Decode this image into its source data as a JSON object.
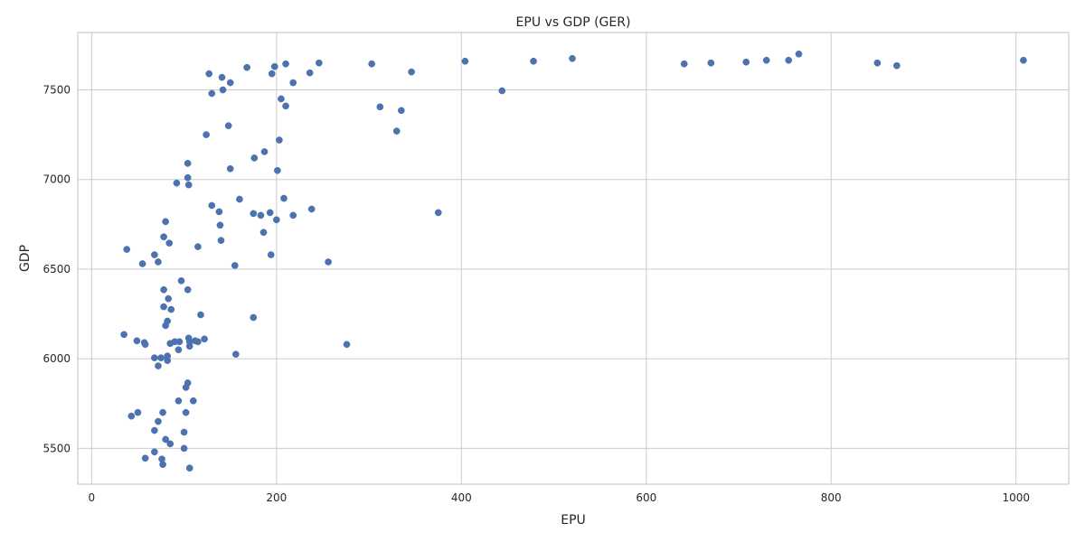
{
  "chart_data": {
    "type": "scatter",
    "title": "EPU vs GDP (GER)",
    "xlabel": "EPU",
    "ylabel": "GDP",
    "xlim": [
      -15,
      1057
    ],
    "ylim": [
      5300,
      7820
    ],
    "xticks": [
      0,
      200,
      400,
      600,
      800,
      1000
    ],
    "yticks": [
      5500,
      6000,
      6500,
      7000,
      7500
    ],
    "grid": true,
    "marker_color": "#4c72b0",
    "points": [
      [
        35,
        6135
      ],
      [
        38,
        6610
      ],
      [
        43,
        5680
      ],
      [
        49,
        6100
      ],
      [
        50,
        5700
      ],
      [
        55,
        6530
      ],
      [
        57,
        6090
      ],
      [
        58,
        6080
      ],
      [
        58,
        5445
      ],
      [
        68,
        5480
      ],
      [
        68,
        6005
      ],
      [
        68,
        5600
      ],
      [
        68,
        6580
      ],
      [
        72,
        5650
      ],
      [
        72,
        5960
      ],
      [
        72,
        6540
      ],
      [
        75,
        6005
      ],
      [
        76,
        5440
      ],
      [
        77,
        5410
      ],
      [
        77,
        5700
      ],
      [
        78,
        6680
      ],
      [
        78,
        6385
      ],
      [
        78,
        6290
      ],
      [
        80,
        6185
      ],
      [
        80,
        5550
      ],
      [
        80,
        6765
      ],
      [
        82,
        6210
      ],
      [
        82,
        6015
      ],
      [
        82,
        5990
      ],
      [
        83,
        6335
      ],
      [
        84,
        6645
      ],
      [
        85,
        6085
      ],
      [
        85,
        5525
      ],
      [
        86,
        6275
      ],
      [
        90,
        6095
      ],
      [
        92,
        6980
      ],
      [
        94,
        5765
      ],
      [
        94,
        6050
      ],
      [
        95,
        6095
      ],
      [
        97,
        6435
      ],
      [
        100,
        5500
      ],
      [
        100,
        5590
      ],
      [
        102,
        5840
      ],
      [
        102,
        5700
      ],
      [
        104,
        5865
      ],
      [
        104,
        7090
      ],
      [
        104,
        7010
      ],
      [
        104,
        6385
      ],
      [
        105,
        6970
      ],
      [
        105,
        6115
      ],
      [
        106,
        6095
      ],
      [
        106,
        5390
      ],
      [
        106,
        6070
      ],
      [
        110,
        5765
      ],
      [
        112,
        6100
      ],
      [
        115,
        6625
      ],
      [
        115,
        6095
      ],
      [
        118,
        6245
      ],
      [
        122,
        6110
      ],
      [
        124,
        7250
      ],
      [
        127,
        7590
      ],
      [
        130,
        6855
      ],
      [
        130,
        7480
      ],
      [
        138,
        6820
      ],
      [
        139,
        6745
      ],
      [
        140,
        6660
      ],
      [
        141,
        7570
      ],
      [
        142,
        7500
      ],
      [
        148,
        7300
      ],
      [
        150,
        7540
      ],
      [
        150,
        7060
      ],
      [
        155,
        6520
      ],
      [
        156,
        6025
      ],
      [
        160,
        6890
      ],
      [
        168,
        7625
      ],
      [
        175,
        6230
      ],
      [
        175,
        6810
      ],
      [
        176,
        7120
      ],
      [
        183,
        6800
      ],
      [
        186,
        6705
      ],
      [
        187,
        7155
      ],
      [
        193,
        6815
      ],
      [
        194,
        6580
      ],
      [
        195,
        7590
      ],
      [
        198,
        7630
      ],
      [
        200,
        6775
      ],
      [
        201,
        7050
      ],
      [
        203,
        7220
      ],
      [
        205,
        7450
      ],
      [
        208,
        6895
      ],
      [
        210,
        7410
      ],
      [
        210,
        7645
      ],
      [
        218,
        7540
      ],
      [
        218,
        6800
      ],
      [
        236,
        7595
      ],
      [
        238,
        6835
      ],
      [
        246,
        7650
      ],
      [
        256,
        6540
      ],
      [
        276,
        6080
      ],
      [
        303,
        7645
      ],
      [
        312,
        7405
      ],
      [
        330,
        7270
      ],
      [
        335,
        7385
      ],
      [
        346,
        7600
      ],
      [
        375,
        6815
      ],
      [
        404,
        7660
      ],
      [
        444,
        7495
      ],
      [
        478,
        7660
      ],
      [
        520,
        7675
      ],
      [
        641,
        7645
      ],
      [
        670,
        7650
      ],
      [
        708,
        7655
      ],
      [
        730,
        7665
      ],
      [
        754,
        7665
      ],
      [
        765,
        7700
      ],
      [
        850,
        7650
      ],
      [
        871,
        7635
      ],
      [
        1008,
        7665
      ]
    ]
  }
}
